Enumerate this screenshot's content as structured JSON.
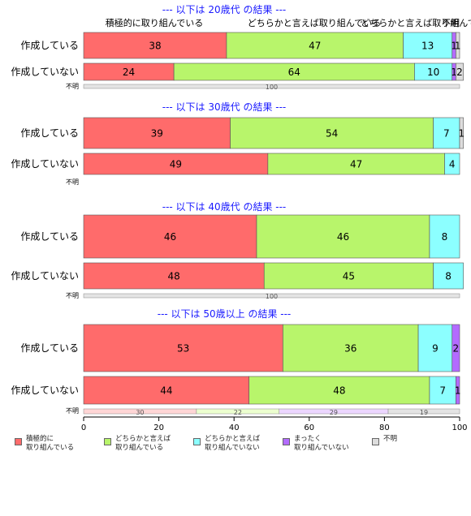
{
  "chart_data": {
    "type": "bar",
    "orientation": "horizontal",
    "stacked": true,
    "xlim": [
      0,
      100
    ],
    "x_ticks": [
      "0",
      "20",
      "40",
      "60",
      "80",
      "100"
    ],
    "grid": false,
    "legend_position": "bottom",
    "colors": {
      "積極的に取り組んでいる": "#ff6b6b",
      "どちらかと言えば取り組んでいる": "#b8f56b",
      "どちらかと言えば取り組んでいない": "#8cffff",
      "まったく取り組んでいない": "#b36bff",
      "不明": "#dddddd"
    },
    "legend": [
      {
        "label": "積極的に\n取り組んでいる",
        "color": "#ff6b6b"
      },
      {
        "label": "どちらかと言えば\n取り組んでいる",
        "color": "#b8f56b"
      },
      {
        "label": "どちらかと言えば\n取り組んでいない",
        "color": "#8cffff"
      },
      {
        "label": "まったく\n取り組んでいない",
        "color": "#b36bff"
      },
      {
        "label": "不明",
        "color": "#dddddd"
      }
    ],
    "panels": [
      {
        "title": "--- 以下は 20歳代 の結果 ---",
        "header_labels": [
          "積極的に取り組んでいる",
          "どちらかと言えば取り組んでいる",
          "どちらかと言えば取り組んでいない",
          "不明"
        ],
        "bars": [
          {
            "category": "作成している",
            "values": [
              38,
              47,
              13,
              1,
              1
            ],
            "labels": [
              "38",
              "47",
              "13",
              "1",
              "1"
            ]
          },
          {
            "category": "作成していない",
            "values": [
              24,
              64,
              10,
              1,
              2
            ],
            "labels": [
              "24",
              "64",
              "10",
              "1",
              "2"
            ]
          }
        ],
        "unknown": {
          "label": "不明",
          "values": [
            0,
            0,
            0,
            0,
            100
          ],
          "labels": [
            "",
            "",
            "",
            "",
            "100"
          ]
        }
      },
      {
        "title": "--- 以下は 30歳代 の結果 ---",
        "bars": [
          {
            "category": "作成している",
            "values": [
              39,
              54,
              7,
              0,
              1
            ],
            "labels": [
              "39",
              "54",
              "7",
              "",
              "1"
            ]
          },
          {
            "category": "作成していない",
            "values": [
              49,
              47,
              4,
              0,
              0
            ],
            "labels": [
              "49",
              "47",
              "4",
              "",
              ""
            ]
          }
        ],
        "unknown": {
          "label": "不明",
          "values": [
            0,
            0,
            0,
            0,
            0
          ],
          "labels": [
            "",
            "",
            "",
            "",
            ""
          ]
        }
      },
      {
        "title": "--- 以下は 40歳代 の結果 ---",
        "bars": [
          {
            "category": "作成している",
            "values": [
              46,
              46,
              8,
              0,
              0
            ],
            "labels": [
              "46",
              "46",
              "8",
              "",
              ""
            ]
          },
          {
            "category": "作成していない",
            "values": [
              48,
              45,
              8,
              0,
              0
            ],
            "labels": [
              "48",
              "45",
              "8",
              "",
              ""
            ]
          }
        ],
        "unknown": {
          "label": "不明",
          "values": [
            0,
            0,
            0,
            0,
            100
          ],
          "labels": [
            "",
            "",
            "",
            "",
            "100"
          ]
        }
      },
      {
        "title": "--- 以下は 50歳以上 の結果 ---",
        "bars": [
          {
            "category": "作成している",
            "values": [
              53,
              36,
              9,
              2,
              0
            ],
            "labels": [
              "53",
              "36",
              "9",
              "2",
              ""
            ]
          },
          {
            "category": "作成していない",
            "values": [
              44,
              48,
              7,
              1,
              0
            ],
            "labels": [
              "44",
              "48",
              "7",
              "1",
              ""
            ]
          }
        ],
        "unknown": {
          "label": "不明",
          "values": [
            30,
            22,
            0,
            29,
            19
          ],
          "labels": [
            "30",
            "22",
            "",
            "29",
            "19"
          ]
        }
      }
    ]
  }
}
